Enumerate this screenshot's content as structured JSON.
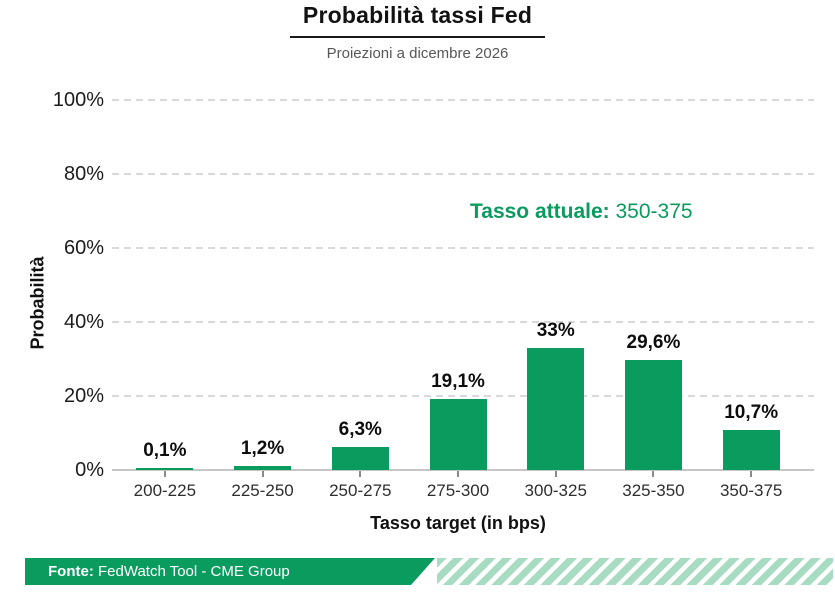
{
  "title": "Probabilità tassi Fed",
  "subtitle": "Proiezioni a dicembre 2026",
  "annotation": {
    "label": "Tasso attuale:",
    "value": "350-375"
  },
  "footer": {
    "source_label": "Fonte:",
    "source_text": "FedWatch Tool - CME Group"
  },
  "colors": {
    "accent_green": "#0a9b5e",
    "stripe_green": "#a7dcc3",
    "grid_gray": "#d9d9d9",
    "axis_gray": "#c6c6c6",
    "subtitle_gray": "#575757"
  },
  "chart_data": {
    "type": "bar",
    "title": "Probabilità tassi Fed",
    "subtitle": "Proiezioni a dicembre 2026",
    "categories": [
      "200-225",
      "225-250",
      "250-275",
      "275-300",
      "300-325",
      "325-350",
      "350-375"
    ],
    "values": [
      0.1,
      1.2,
      6.3,
      19.1,
      33,
      29.6,
      10.7
    ],
    "value_labels": [
      "0,1%",
      "1,2%",
      "6,3%",
      "19,1%",
      "33%",
      "29,6%",
      "10,7%"
    ],
    "xlabel": "Tasso target (in bps)",
    "ylabel": "Probabilità",
    "ylim": [
      0,
      100
    ],
    "ytick_values": [
      0,
      20,
      40,
      60,
      80,
      100
    ],
    "ytick_labels": [
      "0%",
      "20%",
      "40%",
      "60%",
      "80%",
      "100%"
    ],
    "grid": "horizontal-dashed",
    "legend": "none",
    "annotation": "Tasso attuale: 350-375",
    "bar_color": "#0a9b5e"
  }
}
